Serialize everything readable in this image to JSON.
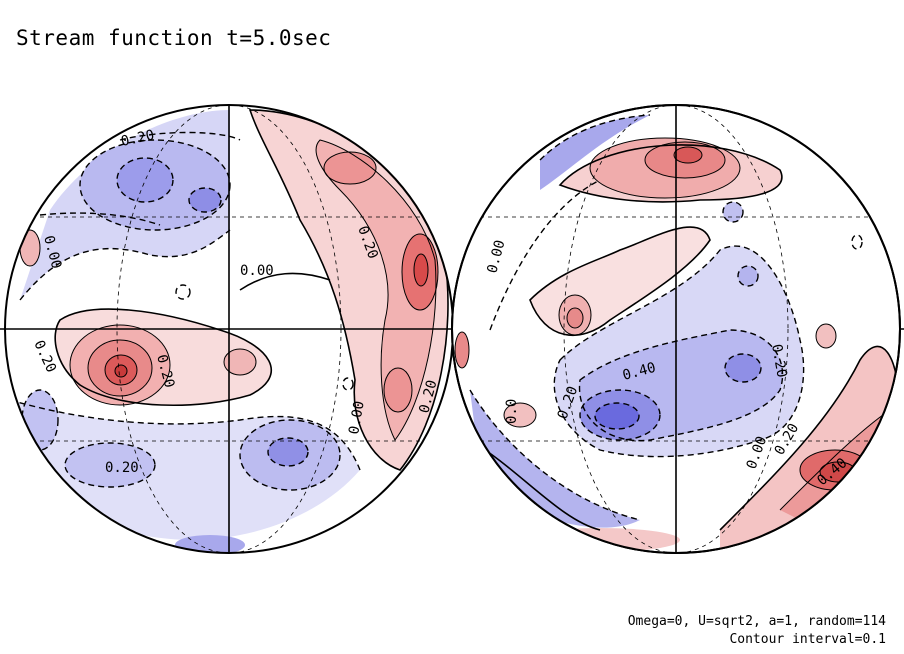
{
  "title": "Stream function t=5.0sec",
  "info_line1": "Omega=0, U=sqrt2, a=1, random=114",
  "info_line2": "Contour interval=0.1",
  "colors": {
    "positive": "#e05050",
    "positive_light": "#f7d4d4",
    "negative": "#5a5ae0",
    "negative_light": "#d6d6f6",
    "line": "#000000"
  },
  "contour_labels": {
    "left": [
      "0.20",
      "0.20",
      "0.00",
      "0.00",
      "0.20",
      "0.20",
      "0.00",
      "0.20",
      "0.20"
    ],
    "right": [
      "0.00",
      "0.20",
      "0.40",
      "0.20",
      "0.0",
      "0.00",
      "0.20",
      "0.40"
    ]
  }
}
